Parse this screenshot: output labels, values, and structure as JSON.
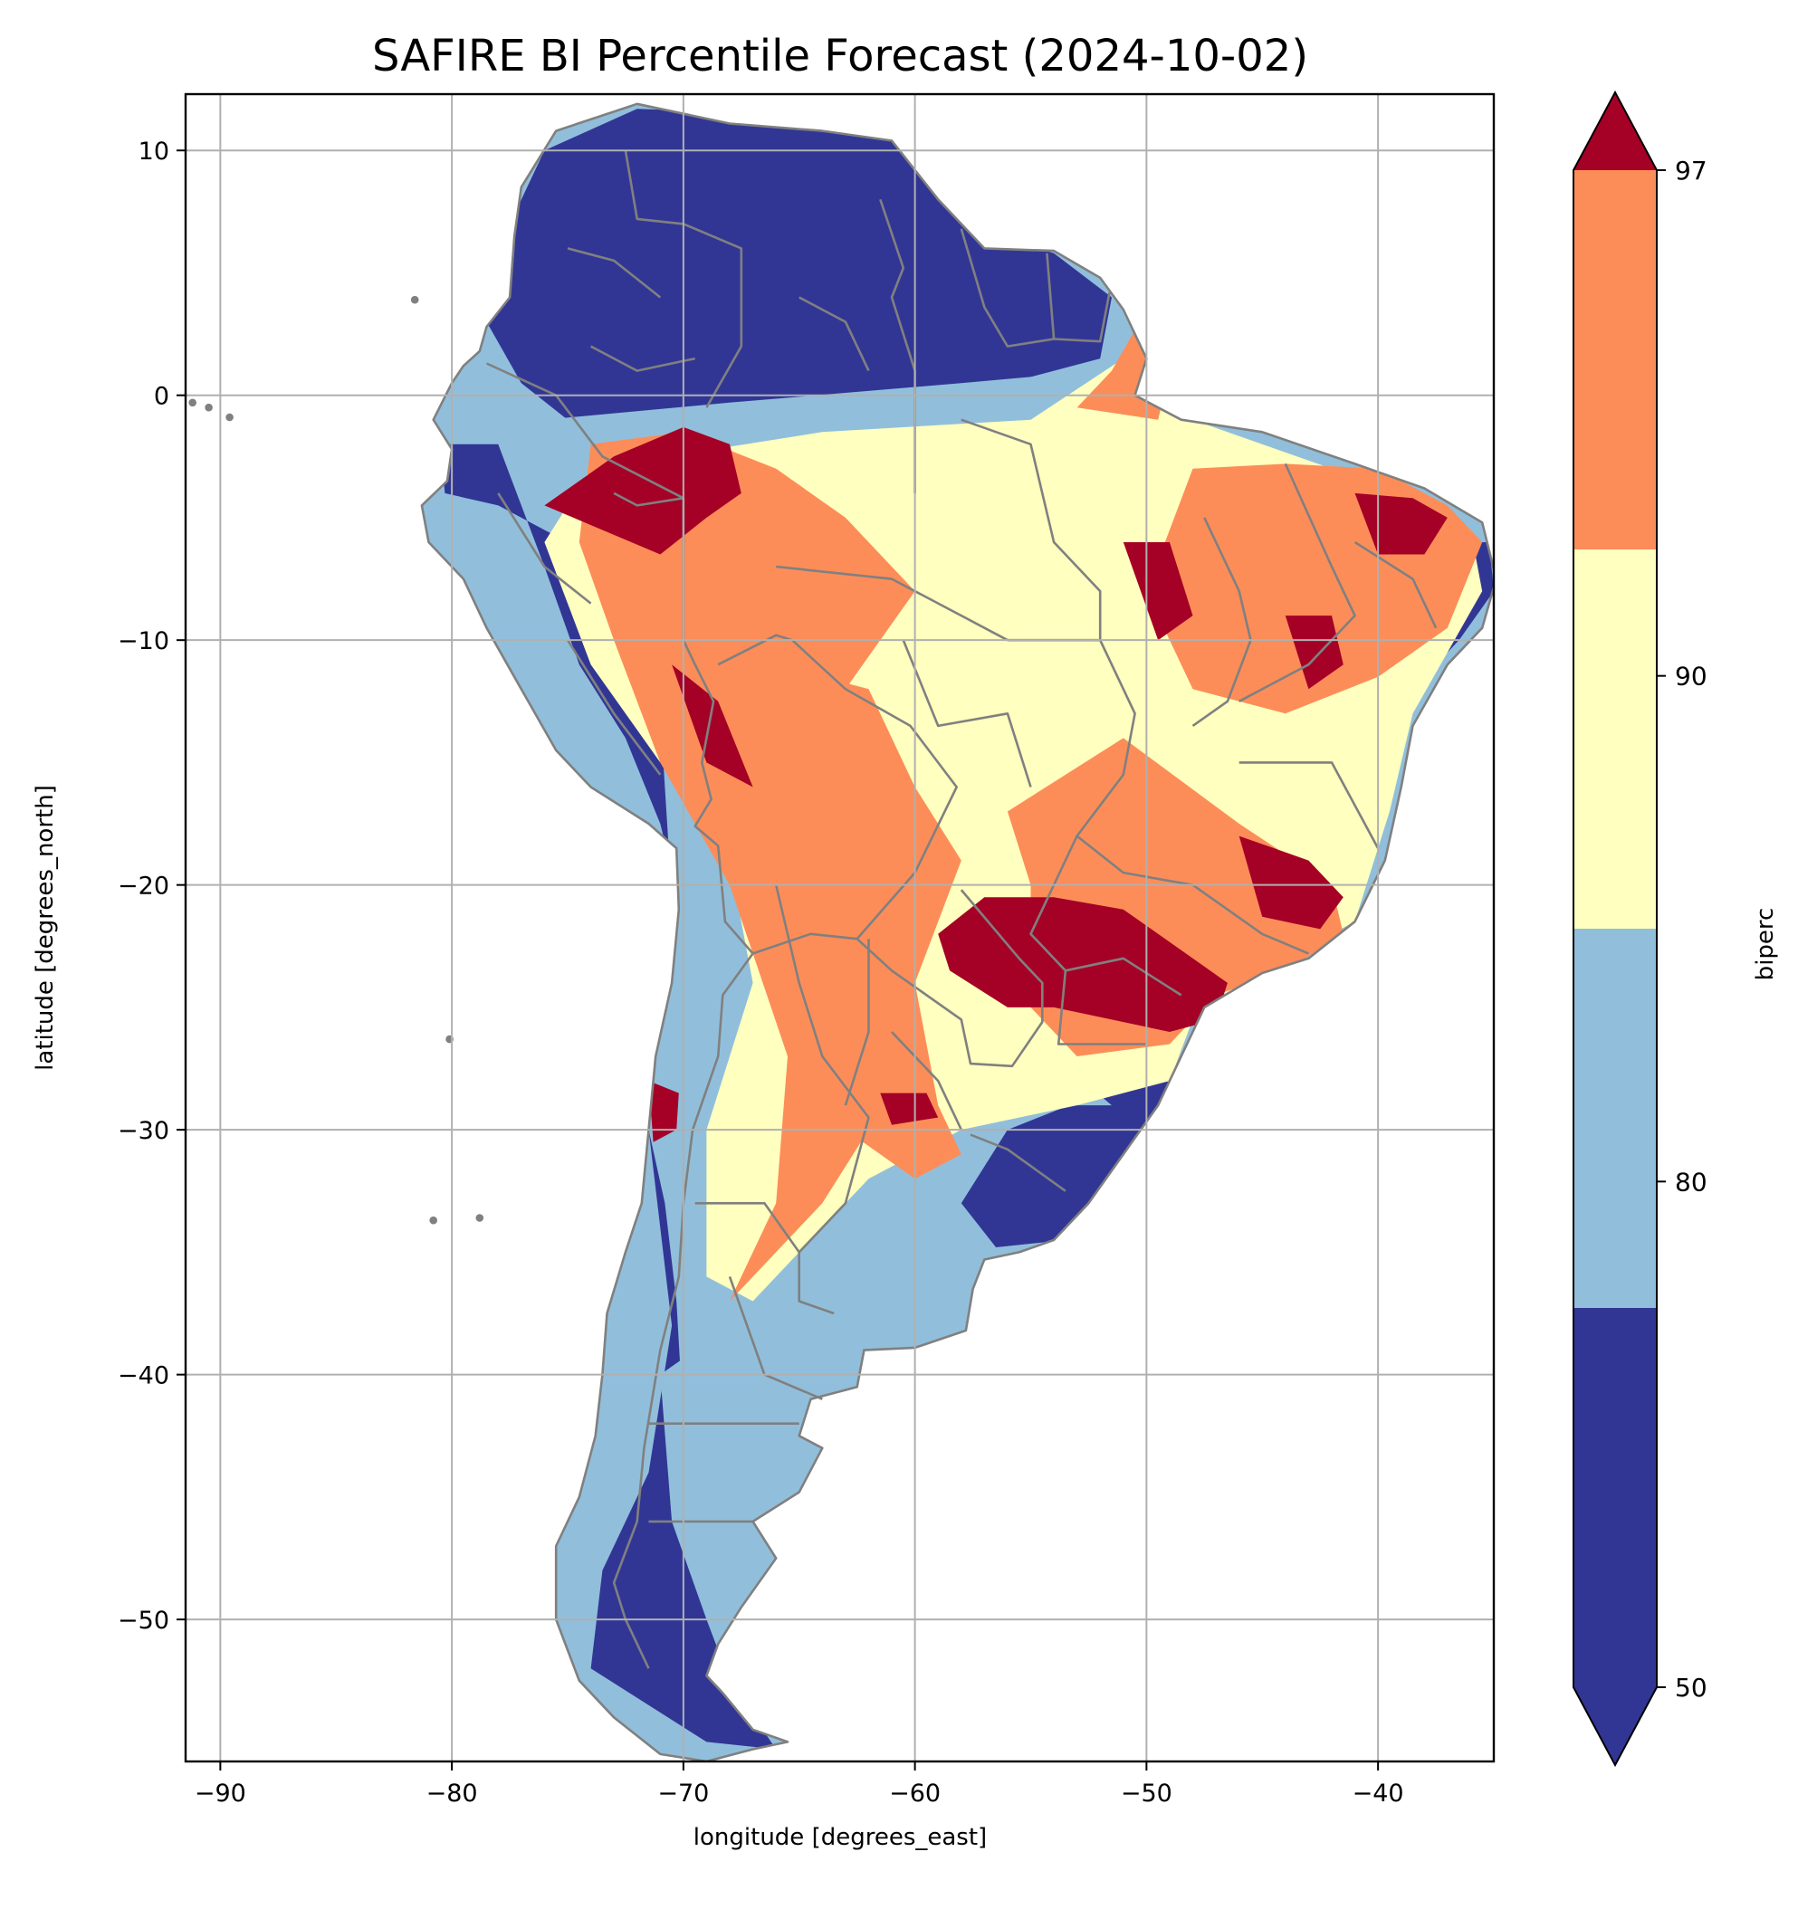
{
  "title": "SAFIRE BI Percentile Forecast (2024-10-02)",
  "xlabel": "longitude [degrees_east]",
  "ylabel": "latitude [degrees_north]",
  "x_ticks": [
    "−90",
    "−80",
    "−70",
    "−60",
    "−50",
    "−40"
  ],
  "y_ticks": [
    "10",
    "0",
    "−10",
    "−20",
    "−30",
    "−40",
    "−50"
  ],
  "colorbar": {
    "label": "biperc",
    "ticks": [
      "50",
      "80",
      "90",
      "97"
    ],
    "bins": [
      {
        "range": "below 50",
        "color": "#313695"
      },
      {
        "range": "50–80",
        "color": "#91bfdb"
      },
      {
        "range": "80–90",
        "color": "#ffffbf"
      },
      {
        "range": "90–97",
        "color": "#fc8d59"
      },
      {
        "range": "above 97",
        "color": "#a50026"
      }
    ]
  },
  "border_color": "#808080",
  "chart_data": {
    "type": "heatmap",
    "title": "SAFIRE BI Percentile Forecast (2024-10-02)",
    "xlabel": "longitude [degrees_east]",
    "ylabel": "latitude [degrees_north]",
    "xlim": [
      -91.5,
      -35
    ],
    "ylim": [
      -55.8,
      12.3
    ],
    "xticks": [
      -90,
      -80,
      -70,
      -60,
      -50,
      -40
    ],
    "yticks": [
      10,
      0,
      -10,
      -20,
      -30,
      -40,
      -50
    ],
    "grid": true,
    "colorbar_levels": [
      50,
      80,
      90,
      97
    ],
    "colorbar_extend": "both",
    "colorbar_label": "biperc",
    "regions": [
      {
        "name": "north-coast-low",
        "class": 0,
        "polygon": [
          [
            -76,
            10
          ],
          [
            -72,
            11.7
          ],
          [
            -66,
            11.5
          ],
          [
            -61,
            10.5
          ],
          [
            -58,
            7
          ],
          [
            -54,
            5.8
          ],
          [
            -51.5,
            4
          ],
          [
            -52,
            1.5
          ],
          [
            -56,
            0.5
          ],
          [
            -64,
            0
          ],
          [
            -70,
            -0.5
          ],
          [
            -75,
            -1
          ],
          [
            -77,
            0.5
          ],
          [
            -78.5,
            3
          ],
          [
            -77.5,
            7
          ]
        ]
      },
      {
        "name": "west-andes-low",
        "class": 0,
        "polygon": [
          [
            -80.5,
            -2
          ],
          [
            -78,
            -2
          ],
          [
            -76,
            -7
          ],
          [
            -74.5,
            -11
          ],
          [
            -72.5,
            -14
          ],
          [
            -71,
            -17.5
          ],
          [
            -70.6,
            -19
          ],
          [
            -71,
            -13
          ],
          [
            -73,
            -10
          ],
          [
            -75,
            -6
          ],
          [
            -78,
            -4.5
          ],
          [
            -80.3,
            -4
          ]
        ]
      },
      {
        "name": "patagonia-low",
        "class": 0,
        "polygon": [
          [
            -71.5,
            -30
          ],
          [
            -70.5,
            -38
          ],
          [
            -71.5,
            -44
          ],
          [
            -73.5,
            -48
          ],
          [
            -74,
            -52
          ],
          [
            -69,
            -55
          ],
          [
            -66,
            -55.3
          ],
          [
            -68,
            -52.5
          ],
          [
            -69,
            -50
          ],
          [
            -69.5,
            -46
          ],
          [
            -70,
            -42
          ],
          [
            -70.3,
            -37
          ],
          [
            -70.8,
            -33
          ]
        ]
      },
      {
        "name": "uruguay-low",
        "class": 0,
        "polygon": [
          [
            -56,
            -30
          ],
          [
            -52,
            -28.5
          ],
          [
            -49,
            -28
          ],
          [
            -50.5,
            -32
          ],
          [
            -53.5,
            -34.5
          ],
          [
            -56.5,
            -34.8
          ],
          [
            -58,
            -33
          ]
        ]
      },
      {
        "name": "east-coast-low",
        "class": 0,
        "polygon": [
          [
            -37,
            -6
          ],
          [
            -35.2,
            -6
          ],
          [
            -35,
            -8
          ],
          [
            -36.5,
            -10
          ],
          [
            -37.5,
            -11
          ]
        ]
      },
      {
        "name": "amazon-mid",
        "class": 1,
        "polygon": [
          [
            -76,
            -1
          ],
          [
            -68,
            -0.3
          ],
          [
            -58,
            0.5
          ],
          [
            -52,
            1
          ],
          [
            -49,
            -1
          ],
          [
            -44,
            -3
          ],
          [
            -40,
            -6
          ],
          [
            -42,
            -10
          ],
          [
            -48,
            -11
          ],
          [
            -56,
            -10
          ],
          [
            -63,
            -9
          ],
          [
            -70,
            -8
          ],
          [
            -74,
            -6
          ],
          [
            -77,
            -3
          ]
        ]
      },
      {
        "name": "south-mid",
        "class": 1,
        "polygon": [
          [
            -70,
            -18
          ],
          [
            -66,
            -21
          ],
          [
            -63,
            -24
          ],
          [
            -62,
            -29
          ],
          [
            -64,
            -33
          ],
          [
            -66,
            -36
          ],
          [
            -68,
            -38
          ],
          [
            -71,
            -40
          ],
          [
            -70.5,
            -46
          ],
          [
            -69,
            -50
          ],
          [
            -67,
            -52
          ],
          [
            -68.5,
            -47
          ],
          [
            -67,
            -44
          ],
          [
            -64,
            -41
          ],
          [
            -62,
            -39
          ],
          [
            -58,
            -37
          ],
          [
            -57,
            -35
          ],
          [
            -58.5,
            -34
          ],
          [
            -58,
            -31
          ],
          [
            -55,
            -29
          ],
          [
            -51.5,
            -29
          ],
          [
            -54,
            -27
          ],
          [
            -57,
            -26
          ],
          [
            -62,
            -22
          ],
          [
            -66,
            -18
          ]
        ]
      },
      {
        "name": "brazil-high",
        "class": 2,
        "polygon": [
          [
            -74,
            -3
          ],
          [
            -64,
            -1.5
          ],
          [
            -55,
            -1
          ],
          [
            -51,
            1.5
          ],
          [
            -48,
            -1
          ],
          [
            -42,
            -3
          ],
          [
            -36,
            -5.5
          ],
          [
            -35.5,
            -8
          ],
          [
            -38.5,
            -13
          ],
          [
            -39.5,
            -17
          ],
          [
            -41,
            -21.5
          ],
          [
            -45,
            -23.5
          ],
          [
            -48,
            -25.5
          ],
          [
            -49,
            -28
          ],
          [
            -53,
            -29
          ],
          [
            -58,
            -30
          ],
          [
            -62,
            -32
          ],
          [
            -65,
            -35
          ],
          [
            -67,
            -37
          ],
          [
            -69,
            -36
          ],
          [
            -69,
            -30
          ],
          [
            -67,
            -24
          ],
          [
            -68,
            -19
          ],
          [
            -71,
            -15
          ],
          [
            -74,
            -11
          ],
          [
            -76,
            -6
          ]
        ]
      },
      {
        "name": "peru-extreme",
        "class": 3,
        "polygon": [
          [
            -74,
            -2
          ],
          [
            -70,
            -1.5
          ],
          [
            -66,
            -3
          ],
          [
            -63,
            -5
          ],
          [
            -60,
            -8
          ],
          [
            -63,
            -12
          ],
          [
            -61,
            -15
          ],
          [
            -64,
            -20
          ],
          [
            -63,
            -24
          ],
          [
            -62,
            -30
          ],
          [
            -64,
            -33
          ],
          [
            -68,
            -37
          ],
          [
            -66,
            -33
          ],
          [
            -65.5,
            -27
          ],
          [
            -68,
            -20
          ],
          [
            -71,
            -15
          ],
          [
            -73,
            -10
          ],
          [
            -74.5,
            -6
          ]
        ]
      },
      {
        "name": "chaco-extreme",
        "class": 3,
        "polygon": [
          [
            -66,
            -11
          ],
          [
            -62,
            -12
          ],
          [
            -60,
            -16
          ],
          [
            -58,
            -19
          ],
          [
            -60,
            -24
          ],
          [
            -59,
            -29
          ],
          [
            -58,
            -31
          ],
          [
            -60,
            -32
          ],
          [
            -63,
            -30
          ],
          [
            -65,
            -25
          ],
          [
            -65.5,
            -19
          ],
          [
            -66,
            -15
          ]
        ]
      },
      {
        "name": "brazil-south-extreme",
        "class": 3,
        "polygon": [
          [
            -56,
            -17
          ],
          [
            -51,
            -14
          ],
          [
            -46,
            -17.5
          ],
          [
            -42,
            -20
          ],
          [
            -41.5,
            -22
          ],
          [
            -44,
            -23.5
          ],
          [
            -47,
            -24.5
          ],
          [
            -49,
            -26.5
          ],
          [
            -53,
            -27
          ],
          [
            -55,
            -25
          ],
          [
            -55,
            -20
          ]
        ]
      },
      {
        "name": "northeast-extreme",
        "class": 3,
        "polygon": [
          [
            -48,
            -3
          ],
          [
            -44,
            -2.8
          ],
          [
            -40,
            -3
          ],
          [
            -37,
            -4.5
          ],
          [
            -35.5,
            -6
          ],
          [
            -37,
            -9.5
          ],
          [
            -40,
            -11.5
          ],
          [
            -44,
            -13
          ],
          [
            -48,
            -12
          ],
          [
            -50,
            -8
          ]
        ]
      },
      {
        "name": "amapa-extreme",
        "class": 3,
        "polygon": [
          [
            -53,
            -0.5
          ],
          [
            -51.5,
            1
          ],
          [
            -50,
            3.5
          ],
          [
            -49,
            1
          ],
          [
            -49.5,
            -1
          ]
        ]
      },
      {
        "name": "peru-very",
        "class": 4,
        "polygon": [
          [
            -76,
            -4.5
          ],
          [
            -73,
            -2.5
          ],
          [
            -70,
            -1.3
          ],
          [
            -68,
            -2
          ],
          [
            -67.5,
            -4
          ],
          [
            -69,
            -5
          ],
          [
            -71,
            -6.5
          ],
          [
            -73.5,
            -5.5
          ]
        ]
      },
      {
        "name": "andes-very",
        "class": 4,
        "polygon": [
          [
            -70.5,
            -11
          ],
          [
            -68.5,
            -12.5
          ],
          [
            -67,
            -16
          ],
          [
            -69,
            -15
          ]
        ]
      },
      {
        "name": "parana-very",
        "class": 4,
        "polygon": [
          [
            -59,
            -22
          ],
          [
            -57,
            -20.5
          ],
          [
            -54,
            -20.5
          ],
          [
            -51,
            -21
          ],
          [
            -48,
            -23
          ],
          [
            -46.5,
            -24
          ],
          [
            -47,
            -25.5
          ],
          [
            -49,
            -26
          ],
          [
            -51.5,
            -25.5
          ],
          [
            -54,
            -25
          ],
          [
            -56,
            -25
          ],
          [
            -58.5,
            -23.5
          ]
        ]
      },
      {
        "name": "minas-very",
        "class": 4,
        "polygon": [
          [
            -46,
            -18
          ],
          [
            -43,
            -19
          ],
          [
            -41.5,
            -20.5
          ],
          [
            -42.5,
            -21.8
          ],
          [
            -45,
            -21.3
          ]
        ]
      },
      {
        "name": "nordeste-very",
        "class": 4,
        "polygon": [
          [
            -41,
            -4
          ],
          [
            -38.5,
            -4.2
          ],
          [
            -37,
            -5
          ],
          [
            -38,
            -6.5
          ],
          [
            -40,
            -6.5
          ]
        ]
      },
      {
        "name": "bahia-very",
        "class": 4,
        "polygon": [
          [
            -44,
            -9
          ],
          [
            -42,
            -9
          ],
          [
            -41.5,
            -11
          ],
          [
            -43,
            -12
          ]
        ]
      },
      {
        "name": "tocantins-very",
        "class": 4,
        "polygon": [
          [
            -51,
            -6
          ],
          [
            -49,
            -6
          ],
          [
            -48,
            -9
          ],
          [
            -49.5,
            -10
          ]
        ]
      },
      {
        "name": "cuyo-very",
        "class": 4,
        "polygon": [
          [
            -61.5,
            -28.5
          ],
          [
            -59.5,
            -28.5
          ],
          [
            -59,
            -29.5
          ],
          [
            -61,
            -29.8
          ]
        ]
      },
      {
        "name": "chile-very",
        "class": 4,
        "polygon": [
          [
            -71.5,
            -28
          ],
          [
            -70.2,
            -28.5
          ],
          [
            -70.3,
            -30
          ],
          [
            -71.3,
            -30.5
          ]
        ]
      }
    ]
  }
}
